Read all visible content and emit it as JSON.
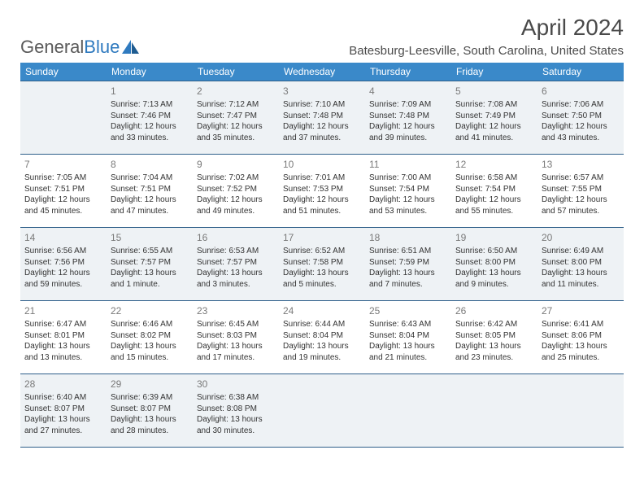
{
  "brand": {
    "general": "General",
    "blue": "Blue"
  },
  "title": "April 2024",
  "location": "Batesburg-Leesville, South Carolina, United States",
  "colors": {
    "header_bg": "#3a89c9",
    "header_text": "#ffffff",
    "border": "#2f5f8a",
    "shade_bg": "#eef2f5",
    "daynum": "#7a7a7a",
    "text": "#333333",
    "brand_gray": "#5a5a5a",
    "brand_blue": "#2f7abf"
  },
  "weekdays": [
    "Sunday",
    "Monday",
    "Tuesday",
    "Wednesday",
    "Thursday",
    "Friday",
    "Saturday"
  ],
  "weeks": [
    [
      {
        "empty": true
      },
      {
        "day": "1",
        "sunrise": "Sunrise: 7:13 AM",
        "sunset": "Sunset: 7:46 PM",
        "d1": "Daylight: 12 hours",
        "d2": "and 33 minutes."
      },
      {
        "day": "2",
        "sunrise": "Sunrise: 7:12 AM",
        "sunset": "Sunset: 7:47 PM",
        "d1": "Daylight: 12 hours",
        "d2": "and 35 minutes."
      },
      {
        "day": "3",
        "sunrise": "Sunrise: 7:10 AM",
        "sunset": "Sunset: 7:48 PM",
        "d1": "Daylight: 12 hours",
        "d2": "and 37 minutes."
      },
      {
        "day": "4",
        "sunrise": "Sunrise: 7:09 AM",
        "sunset": "Sunset: 7:48 PM",
        "d1": "Daylight: 12 hours",
        "d2": "and 39 minutes."
      },
      {
        "day": "5",
        "sunrise": "Sunrise: 7:08 AM",
        "sunset": "Sunset: 7:49 PM",
        "d1": "Daylight: 12 hours",
        "d2": "and 41 minutes."
      },
      {
        "day": "6",
        "sunrise": "Sunrise: 7:06 AM",
        "sunset": "Sunset: 7:50 PM",
        "d1": "Daylight: 12 hours",
        "d2": "and 43 minutes."
      }
    ],
    [
      {
        "day": "7",
        "sunrise": "Sunrise: 7:05 AM",
        "sunset": "Sunset: 7:51 PM",
        "d1": "Daylight: 12 hours",
        "d2": "and 45 minutes."
      },
      {
        "day": "8",
        "sunrise": "Sunrise: 7:04 AM",
        "sunset": "Sunset: 7:51 PM",
        "d1": "Daylight: 12 hours",
        "d2": "and 47 minutes."
      },
      {
        "day": "9",
        "sunrise": "Sunrise: 7:02 AM",
        "sunset": "Sunset: 7:52 PM",
        "d1": "Daylight: 12 hours",
        "d2": "and 49 minutes."
      },
      {
        "day": "10",
        "sunrise": "Sunrise: 7:01 AM",
        "sunset": "Sunset: 7:53 PM",
        "d1": "Daylight: 12 hours",
        "d2": "and 51 minutes."
      },
      {
        "day": "11",
        "sunrise": "Sunrise: 7:00 AM",
        "sunset": "Sunset: 7:54 PM",
        "d1": "Daylight: 12 hours",
        "d2": "and 53 minutes."
      },
      {
        "day": "12",
        "sunrise": "Sunrise: 6:58 AM",
        "sunset": "Sunset: 7:54 PM",
        "d1": "Daylight: 12 hours",
        "d2": "and 55 minutes."
      },
      {
        "day": "13",
        "sunrise": "Sunrise: 6:57 AM",
        "sunset": "Sunset: 7:55 PM",
        "d1": "Daylight: 12 hours",
        "d2": "and 57 minutes."
      }
    ],
    [
      {
        "day": "14",
        "sunrise": "Sunrise: 6:56 AM",
        "sunset": "Sunset: 7:56 PM",
        "d1": "Daylight: 12 hours",
        "d2": "and 59 minutes."
      },
      {
        "day": "15",
        "sunrise": "Sunrise: 6:55 AM",
        "sunset": "Sunset: 7:57 PM",
        "d1": "Daylight: 13 hours",
        "d2": "and 1 minute."
      },
      {
        "day": "16",
        "sunrise": "Sunrise: 6:53 AM",
        "sunset": "Sunset: 7:57 PM",
        "d1": "Daylight: 13 hours",
        "d2": "and 3 minutes."
      },
      {
        "day": "17",
        "sunrise": "Sunrise: 6:52 AM",
        "sunset": "Sunset: 7:58 PM",
        "d1": "Daylight: 13 hours",
        "d2": "and 5 minutes."
      },
      {
        "day": "18",
        "sunrise": "Sunrise: 6:51 AM",
        "sunset": "Sunset: 7:59 PM",
        "d1": "Daylight: 13 hours",
        "d2": "and 7 minutes."
      },
      {
        "day": "19",
        "sunrise": "Sunrise: 6:50 AM",
        "sunset": "Sunset: 8:00 PM",
        "d1": "Daylight: 13 hours",
        "d2": "and 9 minutes."
      },
      {
        "day": "20",
        "sunrise": "Sunrise: 6:49 AM",
        "sunset": "Sunset: 8:00 PM",
        "d1": "Daylight: 13 hours",
        "d2": "and 11 minutes."
      }
    ],
    [
      {
        "day": "21",
        "sunrise": "Sunrise: 6:47 AM",
        "sunset": "Sunset: 8:01 PM",
        "d1": "Daylight: 13 hours",
        "d2": "and 13 minutes."
      },
      {
        "day": "22",
        "sunrise": "Sunrise: 6:46 AM",
        "sunset": "Sunset: 8:02 PM",
        "d1": "Daylight: 13 hours",
        "d2": "and 15 minutes."
      },
      {
        "day": "23",
        "sunrise": "Sunrise: 6:45 AM",
        "sunset": "Sunset: 8:03 PM",
        "d1": "Daylight: 13 hours",
        "d2": "and 17 minutes."
      },
      {
        "day": "24",
        "sunrise": "Sunrise: 6:44 AM",
        "sunset": "Sunset: 8:04 PM",
        "d1": "Daylight: 13 hours",
        "d2": "and 19 minutes."
      },
      {
        "day": "25",
        "sunrise": "Sunrise: 6:43 AM",
        "sunset": "Sunset: 8:04 PM",
        "d1": "Daylight: 13 hours",
        "d2": "and 21 minutes."
      },
      {
        "day": "26",
        "sunrise": "Sunrise: 6:42 AM",
        "sunset": "Sunset: 8:05 PM",
        "d1": "Daylight: 13 hours",
        "d2": "and 23 minutes."
      },
      {
        "day": "27",
        "sunrise": "Sunrise: 6:41 AM",
        "sunset": "Sunset: 8:06 PM",
        "d1": "Daylight: 13 hours",
        "d2": "and 25 minutes."
      }
    ],
    [
      {
        "day": "28",
        "sunrise": "Sunrise: 6:40 AM",
        "sunset": "Sunset: 8:07 PM",
        "d1": "Daylight: 13 hours",
        "d2": "and 27 minutes."
      },
      {
        "day": "29",
        "sunrise": "Sunrise: 6:39 AM",
        "sunset": "Sunset: 8:07 PM",
        "d1": "Daylight: 13 hours",
        "d2": "and 28 minutes."
      },
      {
        "day": "30",
        "sunrise": "Sunrise: 6:38 AM",
        "sunset": "Sunset: 8:08 PM",
        "d1": "Daylight: 13 hours",
        "d2": "and 30 minutes."
      },
      {
        "empty": true
      },
      {
        "empty": true
      },
      {
        "empty": true
      },
      {
        "empty": true
      }
    ]
  ]
}
